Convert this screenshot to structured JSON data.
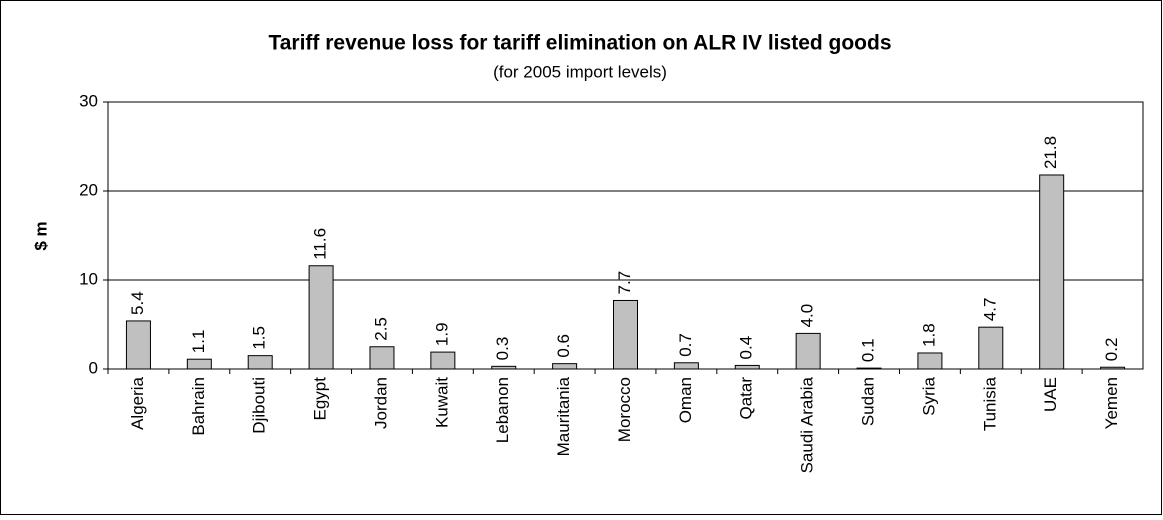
{
  "chart_data": {
    "type": "bar",
    "title": "Tariff revenue loss for tariff elimination on ALR IV listed goods",
    "subtitle": "(for 2005 import levels)",
    "y_label": "$ m",
    "categories": [
      "Algeria",
      "Bahrain",
      "Djibouti",
      "Egypt",
      "Jordan",
      "Kuwait",
      "Lebanon",
      "Mauritania",
      "Morocco",
      "Oman",
      "Qatar",
      "Saudi Arabia",
      "Sudan",
      "Syria",
      "Tunisia",
      "UAE",
      "Yemen"
    ],
    "values": [
      5.4,
      1.1,
      1.5,
      11.6,
      2.5,
      1.9,
      0.3,
      0.6,
      7.7,
      0.7,
      0.4,
      4.0,
      0.1,
      1.8,
      4.7,
      21.8,
      0.2
    ],
    "value_labels": [
      "5.4",
      "1.1",
      "1.5",
      "11.6",
      "2.5",
      "1.9",
      "0.3",
      "0.6",
      "7.7",
      "0.7",
      "0.4",
      "4.0",
      "0.1",
      "1.8",
      "4.7",
      "21.8",
      "0.2"
    ],
    "color": "#c0c0c0",
    "ylim": [
      0,
      30
    ],
    "yticks": [
      0,
      10,
      20,
      30
    ],
    "grid": true
  }
}
